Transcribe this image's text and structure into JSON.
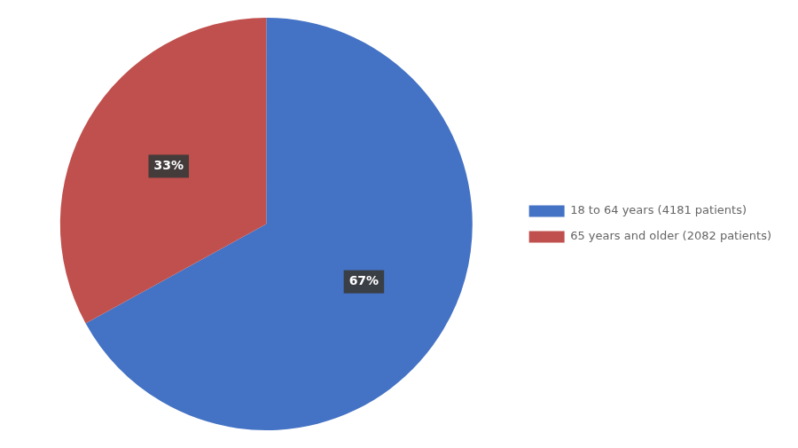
{
  "chart_data": {
    "type": "pie",
    "categories": [
      "18 to 64 years (4181 patients)",
      "65 years and older (2082 patients)"
    ],
    "values": [
      67,
      33
    ],
    "value_labels": [
      "67%",
      "33%"
    ],
    "colors": [
      "#4472C4",
      "#C0504D"
    ],
    "data_labels": true,
    "legend": "right"
  }
}
